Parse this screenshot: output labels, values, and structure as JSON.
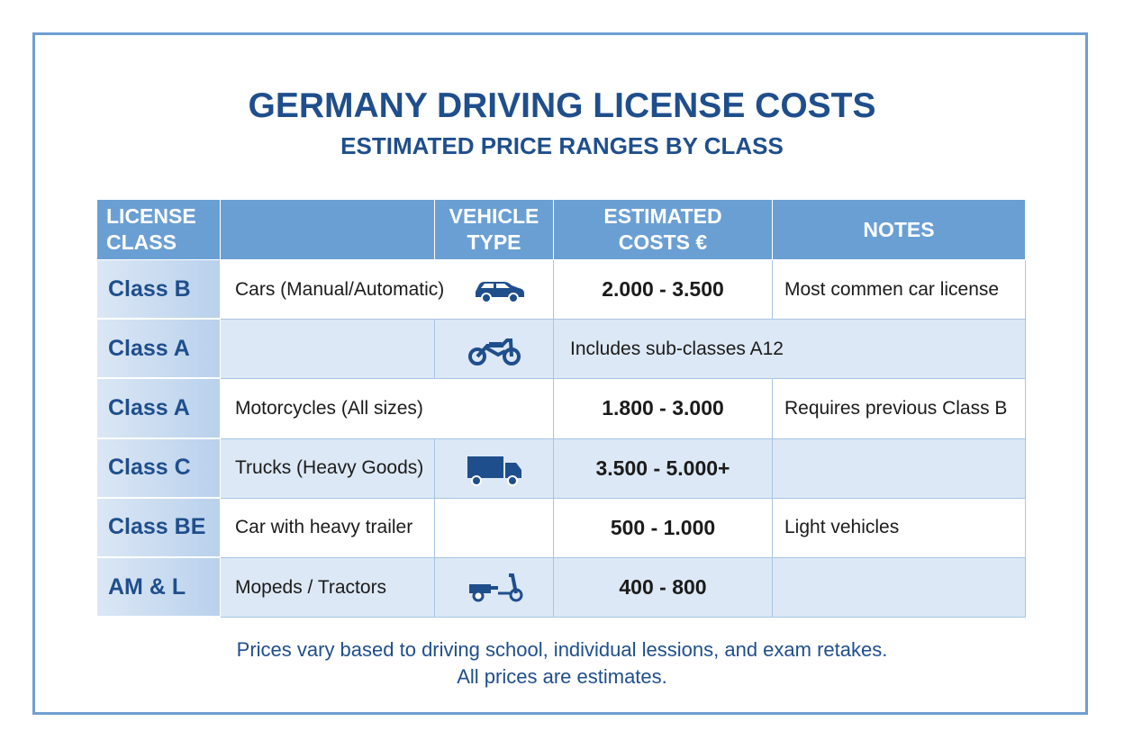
{
  "header": {
    "title": "GERMANY DRIVING LICENSE COSTS",
    "subtitle": "ESTIMATED PRICE RANGES BY CLASS"
  },
  "table": {
    "columns": [
      "LICENSE CLASS",
      "VEHICLE TYPE",
      "ESTIMATED COSTS €",
      "NOTES"
    ],
    "rows": [
      {
        "class": "Class B",
        "vehicle": "Cars (Manual/Automatic)",
        "cost": "2.000 - 3.500",
        "note": "Most commen car license"
      },
      {
        "class": "Class A",
        "note": "Includes sub-classes A12"
      },
      {
        "class": "Class A",
        "vehicle": "Motorcycles (All sizes)",
        "cost": "1.800 - 3.000",
        "note": "Requires previous Class B"
      },
      {
        "class": "Class C",
        "vehicle": "Trucks (Heavy Goods)",
        "cost": "3.500 - 5.000+"
      },
      {
        "class": "Class BE",
        "vehicle": "Car with heavy trailer",
        "cost": "500 - 1.000",
        "note": "Light vehicles"
      },
      {
        "class": "AM & L",
        "vehicle": "Mopeds / Tractors",
        "cost": "400 - 800"
      }
    ]
  },
  "footer": {
    "lines": [
      "Prices vary based to driving school, individual lessions, and exam retakes.",
      "All prices are estimates."
    ]
  }
}
